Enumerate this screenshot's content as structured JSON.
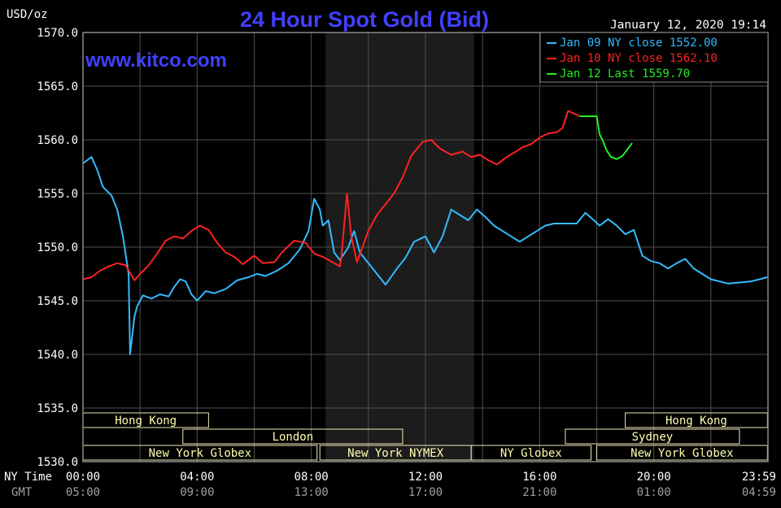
{
  "header": {
    "title": "24 Hour Spot Gold (Bid)",
    "unit": "USD/oz",
    "datetime": "January 12, 2020 19:14",
    "website": "www.kitco.com"
  },
  "colors": {
    "background": "#000000",
    "grid": "#505050",
    "axis_text": "#ffffff",
    "gmt_text": "#a0a0a0",
    "title": "#4040ff",
    "series_jan09": "#33bbff",
    "series_jan10": "#ff2222",
    "series_jan12": "#22ee22",
    "shade": "#1c1c1c",
    "session_box": "#f0e8b8",
    "session_text": "#ffffb0"
  },
  "axis_labels": {
    "ny_time": "NY Time",
    "gmt": "GMT"
  },
  "chart_data": {
    "type": "line",
    "title": "24 Hour Spot Gold (Bid)",
    "ylabel": "USD/oz",
    "ylim": [
      1530,
      1570
    ],
    "yticks": [
      "1530.0",
      "1535.0",
      "1540.0",
      "1545.0",
      "1550.0",
      "1555.0",
      "1560.0",
      "1565.0",
      "1570.0"
    ],
    "xlim": [
      0,
      24
    ],
    "xticks_ny": [
      "00:00",
      "04:00",
      "08:00",
      "12:00",
      "16:00",
      "20:00",
      "23:59"
    ],
    "xticks_gmt": [
      "05:00",
      "09:00",
      "13:00",
      "17:00",
      "21:00",
      "01:00",
      "04:59"
    ],
    "grid": true,
    "legend_position": "top-right",
    "shaded_range": [
      8.5,
      13.7
    ],
    "series": [
      {
        "name": "Jan 09 NY close 1552.00",
        "color": "#33bbff",
        "x": [
          0,
          0.3,
          0.5,
          0.7,
          1.0,
          1.2,
          1.4,
          1.6,
          1.65,
          1.8,
          1.9,
          2.1,
          2.4,
          2.7,
          3.0,
          3.2,
          3.4,
          3.6,
          3.8,
          4.0,
          4.3,
          4.6,
          5.0,
          5.4,
          5.8,
          6.1,
          6.4,
          6.8,
          7.2,
          7.6,
          7.9,
          8.1,
          8.3,
          8.4,
          8.6,
          8.8,
          9.0,
          9.3,
          9.5,
          9.7,
          10.0,
          10.3,
          10.6,
          11.0,
          11.3,
          11.6,
          12.0,
          12.3,
          12.6,
          12.9,
          13.2,
          13.5,
          13.8,
          14.1,
          14.4,
          14.7,
          15.0,
          15.3,
          15.6,
          15.9,
          16.2,
          16.5,
          16.8,
          17.0,
          17.3,
          17.6,
          17.9,
          18.1,
          18.4,
          18.7,
          19.0,
          19.3,
          19.6,
          19.9,
          20.2,
          20.5,
          20.8,
          21.1,
          21.4,
          21.7,
          22.0,
          22.3,
          22.6,
          23.0,
          23.4,
          23.7,
          23.98
        ],
        "values": [
          1557.8,
          1558.4,
          1557.2,
          1555.6,
          1554.8,
          1553.5,
          1551.0,
          1547.5,
          1540.0,
          1543.5,
          1544.5,
          1545.5,
          1545.2,
          1545.6,
          1545.4,
          1546.3,
          1547.0,
          1546.8,
          1545.6,
          1545.0,
          1545.9,
          1545.7,
          1546.1,
          1546.9,
          1547.2,
          1547.5,
          1547.3,
          1547.8,
          1548.5,
          1549.8,
          1551.5,
          1554.5,
          1553.5,
          1552.0,
          1552.5,
          1549.5,
          1548.8,
          1550.0,
          1551.5,
          1549.5,
          1548.5,
          1547.5,
          1546.5,
          1548.0,
          1549.0,
          1550.5,
          1551.0,
          1549.5,
          1551.0,
          1553.5,
          1553.0,
          1552.5,
          1553.5,
          1552.8,
          1552.0,
          1551.5,
          1551.0,
          1550.5,
          1551.0,
          1551.5,
          1552.0,
          1552.2,
          1552.2,
          1552.2,
          1552.2,
          1553.2,
          1552.5,
          1552.0,
          1552.6,
          1552.0,
          1551.2,
          1551.6,
          1549.2,
          1548.7,
          1548.5,
          1548.0,
          1548.5,
          1548.9,
          1548.0,
          1547.5,
          1547.0,
          1546.8,
          1546.6,
          1546.7,
          1546.8,
          1547.0,
          1547.2
        ]
      },
      {
        "name": "Jan 10 NY close 1562.10",
        "color": "#ff2222",
        "x": [
          0,
          0.3,
          0.6,
          0.9,
          1.2,
          1.5,
          1.8,
          2.0,
          2.3,
          2.6,
          2.9,
          3.2,
          3.5,
          3.8,
          4.1,
          4.4,
          4.7,
          5.0,
          5.3,
          5.6,
          6.0,
          6.3,
          6.7,
          7.0,
          7.4,
          7.8,
          8.1,
          8.4,
          8.8,
          9.0,
          9.05,
          9.25,
          9.4,
          9.6,
          10.0,
          10.3,
          10.6,
          10.9,
          11.2,
          11.5,
          11.9,
          12.2,
          12.5,
          12.9,
          13.3,
          13.6,
          13.9,
          14.2,
          14.5,
          14.8,
          15.1,
          15.4,
          15.7,
          16.0,
          16.3,
          16.6,
          16.8,
          17.0,
          17.4
        ],
        "values": [
          1547.0,
          1547.2,
          1547.8,
          1548.2,
          1548.5,
          1548.3,
          1546.9,
          1547.5,
          1548.3,
          1549.4,
          1550.6,
          1551.0,
          1550.8,
          1551.5,
          1552.0,
          1551.6,
          1550.4,
          1549.5,
          1549.1,
          1548.4,
          1549.2,
          1548.5,
          1548.6,
          1549.6,
          1550.6,
          1550.4,
          1549.4,
          1549.1,
          1548.5,
          1548.2,
          1549.0,
          1555.0,
          1551.0,
          1548.6,
          1551.5,
          1553.0,
          1554.0,
          1555.0,
          1556.5,
          1558.5,
          1559.8,
          1560.0,
          1559.2,
          1558.6,
          1558.9,
          1558.4,
          1558.6,
          1558.1,
          1557.7,
          1558.3,
          1558.8,
          1559.3,
          1559.6,
          1560.2,
          1560.6,
          1560.7,
          1561.1,
          1562.7,
          1562.2
        ]
      },
      {
        "name": "Jan 12 Last 1559.70",
        "color": "#22ee22",
        "x": [
          17.4,
          17.7,
          18.0,
          18.1,
          18.2,
          18.35,
          18.5,
          18.7,
          18.9,
          19.1,
          19.24
        ],
        "values": [
          1562.2,
          1562.2,
          1562.2,
          1560.5,
          1560.0,
          1559.0,
          1558.4,
          1558.2,
          1558.5,
          1559.2,
          1559.7
        ]
      }
    ],
    "sessions": [
      {
        "label": "Hong Kong",
        "start": 0.0,
        "end": 4.4,
        "row": 1
      },
      {
        "label": "Hong Kong",
        "start": 19.0,
        "end": 23.98,
        "row": 1
      },
      {
        "label": "London",
        "start": 3.5,
        "end": 11.2,
        "row": 2
      },
      {
        "label": "Sydney",
        "start": 16.9,
        "end": 23.0,
        "row": 2
      },
      {
        "label": "New York Globex",
        "start": 0.0,
        "end": 8.2,
        "row": 3
      },
      {
        "label": "New York NYMEX",
        "start": 8.3,
        "end": 13.6,
        "row": 3
      },
      {
        "label": "NY Globex",
        "start": 13.6,
        "end": 17.8,
        "row": 3
      },
      {
        "label": "New York Globex",
        "start": 18.0,
        "end": 23.98,
        "row": 3
      }
    ]
  }
}
